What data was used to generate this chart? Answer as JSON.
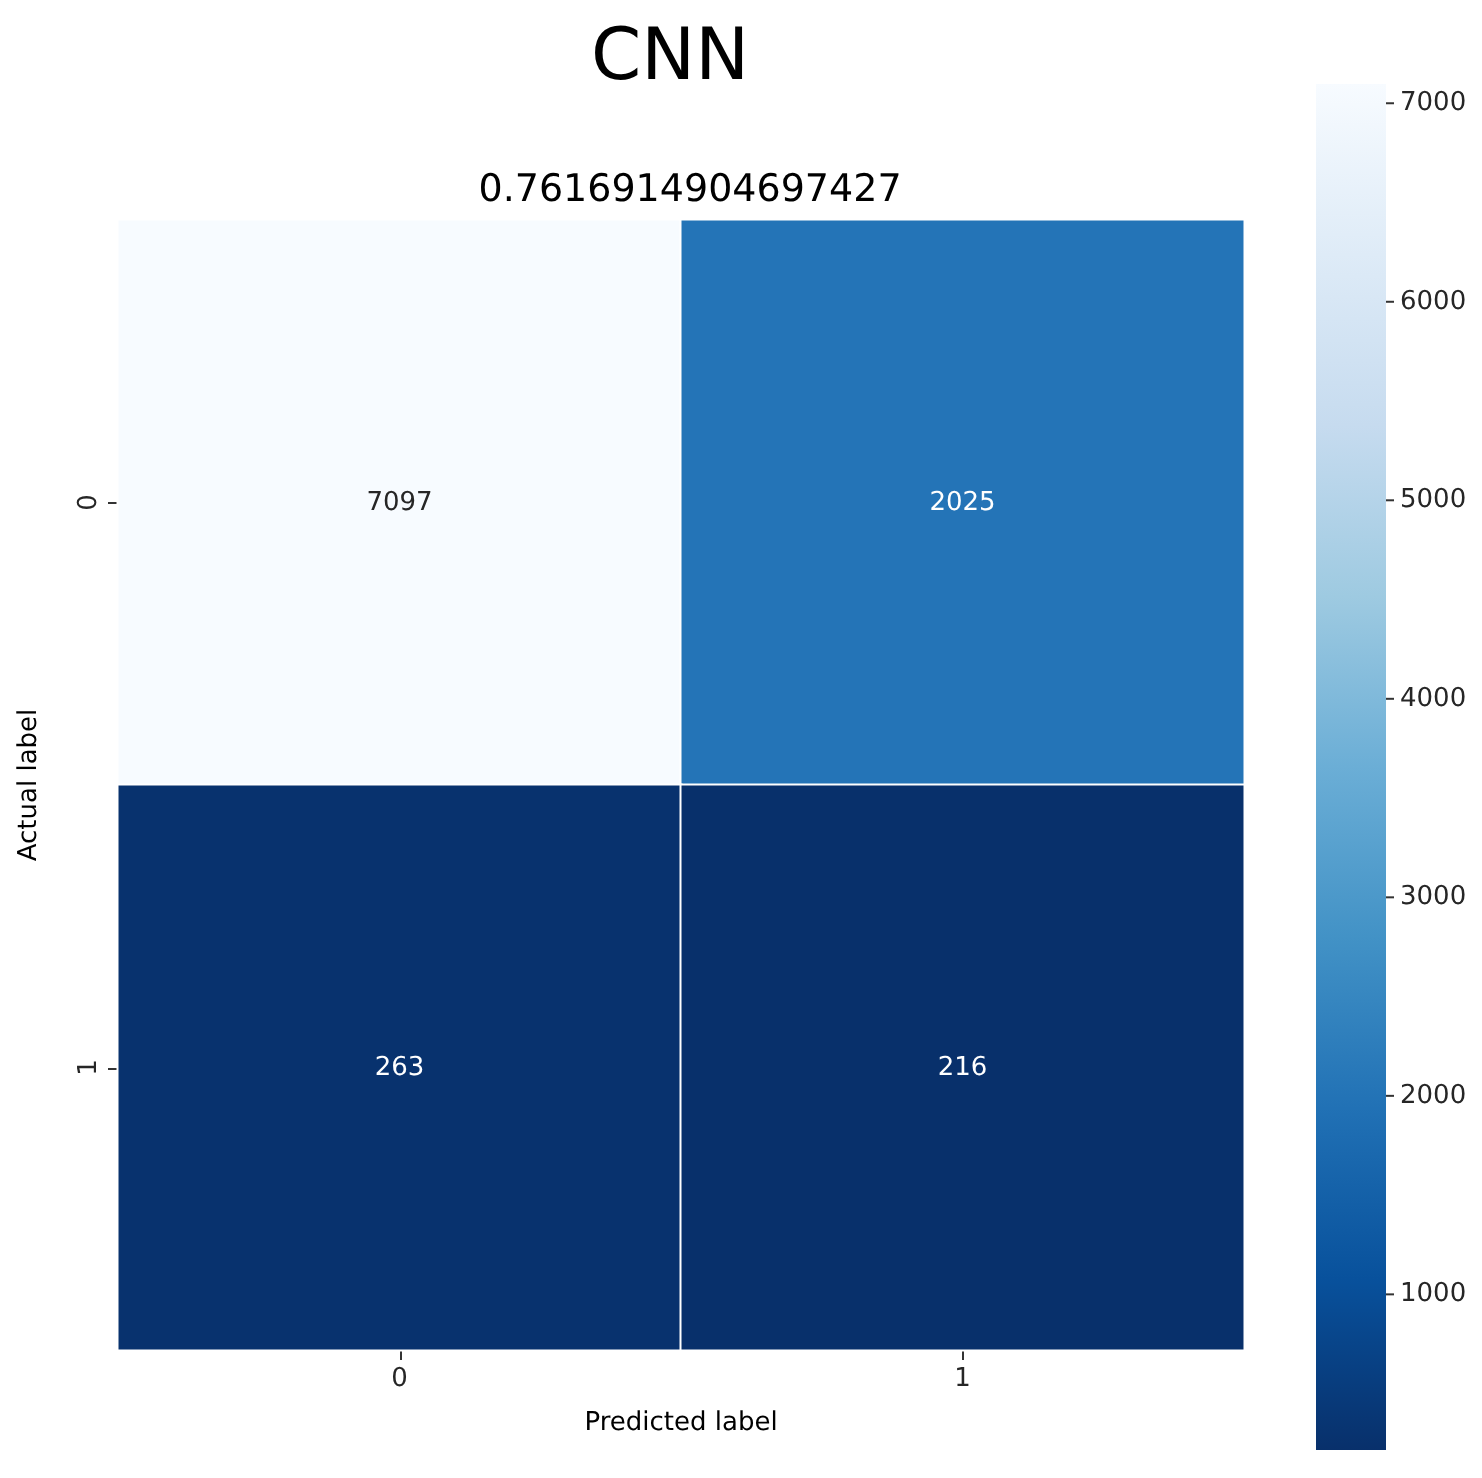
{
  "chart_data": {
    "type": "heatmap",
    "title": "CNN",
    "subtitle": "0.7616914904697427",
    "xlabel": "Predicted label",
    "ylabel": "Actual label",
    "categories": [
      "0",
      "1"
    ],
    "y_categories": [
      "0",
      "1"
    ],
    "cells": [
      [
        7097,
        2025
      ],
      [
        263,
        216
      ]
    ],
    "data_labels": true,
    "clim": [
      216,
      7097
    ],
    "cticks": [
      1000,
      2000,
      3000,
      4000,
      5000,
      6000,
      7000
    ]
  }
}
